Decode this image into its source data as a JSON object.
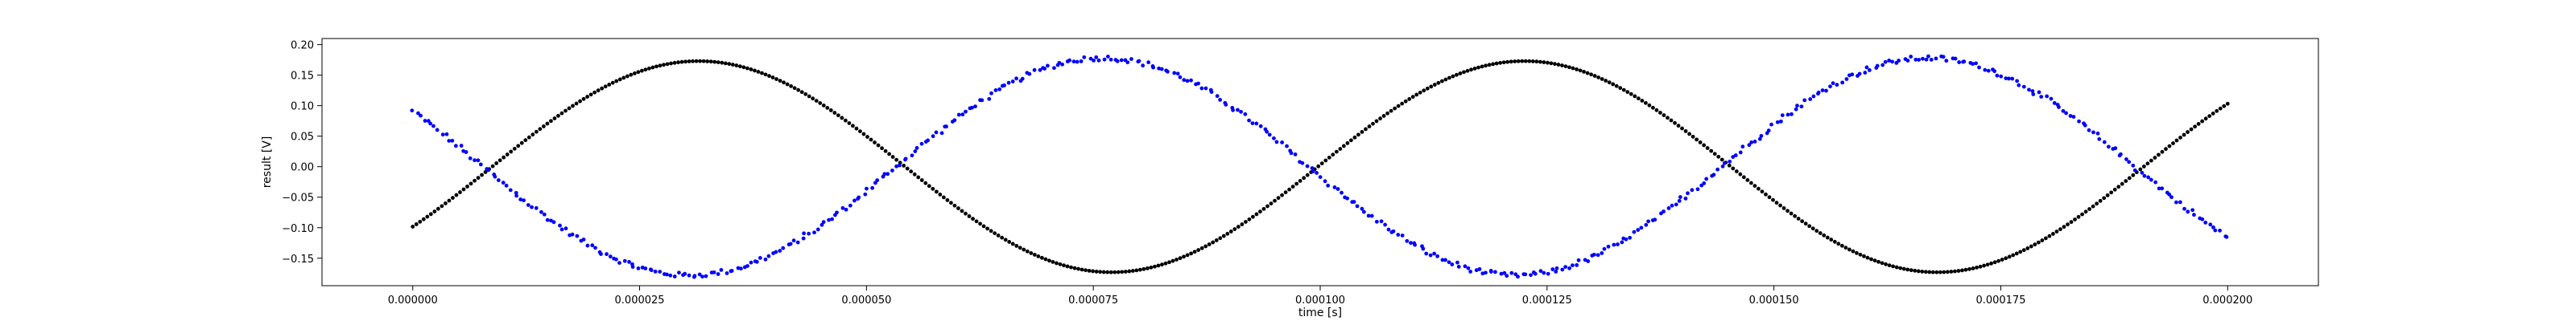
{
  "chart_data": {
    "type": "scatter",
    "xlabel": "time [s]",
    "ylabel": "result [V]",
    "xlim": [
      -1e-05,
      0.00021
    ],
    "ylim": [
      -0.195,
      0.21
    ],
    "x_ticks": [
      0,
      2.5e-05,
      5e-05,
      7.5e-05,
      0.0001,
      0.000125,
      0.00015,
      0.000175,
      0.0002
    ],
    "x_tick_labels": [
      "0.000000",
      "0.000025",
      "0.000050",
      "0.000075",
      "0.000100",
      "0.000125",
      "0.000150",
      "0.000175",
      "0.000200"
    ],
    "y_ticks": [
      -0.15,
      -0.1,
      -0.05,
      0.0,
      0.05,
      0.1,
      0.15,
      0.2
    ],
    "y_tick_labels": [
      "−0.15",
      "−0.10",
      "−0.05",
      "0.00",
      "0.05",
      "0.10",
      "0.15",
      "0.20"
    ],
    "grid": false,
    "series": [
      {
        "color": "#000000",
        "marker": "dot",
        "amplitude": 0.173,
        "period": 9.1e-05,
        "peak_at": 3.15e-05,
        "x_start": 0,
        "x_end": 0.0002,
        "points": 500
      },
      {
        "color": "#0000ff",
        "marker": "dot",
        "amplitude": 0.178,
        "period": 9.1e-05,
        "peak_at": 7.6e-05,
        "x_start": 0,
        "x_end": 0.0002,
        "points": 500,
        "noise": 0.004
      }
    ]
  }
}
